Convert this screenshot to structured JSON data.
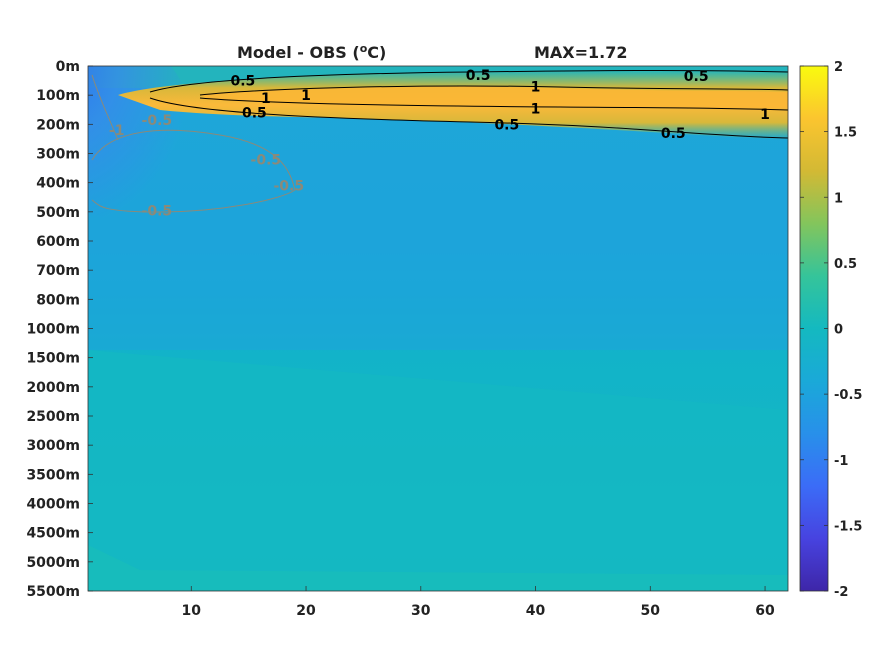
{
  "chart_data": {
    "type": "heatmap",
    "title": "Model - OBS (°C)",
    "title_main": "Model - OBS (",
    "title_sup": "o",
    "title_end": "C)",
    "annotation": "MAX=1.72",
    "xlabel": "",
    "ylabel": "",
    "xlim": [
      1,
      62
    ],
    "x_ticks": [
      10,
      20,
      30,
      40,
      50,
      60
    ],
    "y_ticks": [
      "0m",
      "100m",
      "200m",
      "300m",
      "400m",
      "500m",
      "600m",
      "700m",
      "800m",
      "1000m",
      "1500m",
      "2000m",
      "2500m",
      "3000m",
      "3500m",
      "4000m",
      "4500m",
      "5000m",
      "5500m"
    ],
    "colorbar": {
      "range": [
        -2,
        2
      ],
      "ticks": [
        "2",
        "1.5",
        "1",
        "0.5",
        "0",
        "-0.5",
        "-1",
        "-1.5",
        "-2"
      ],
      "colormap": "parula"
    },
    "contour_levels": [
      -1,
      -0.5,
      0.5,
      1
    ],
    "contour_labels": [
      {
        "text": "0.5",
        "x": 14.5,
        "depth_index": 0.5,
        "color": "#000000"
      },
      {
        "text": "1",
        "x": 16.5,
        "depth_index": 1.1,
        "color": "#000000"
      },
      {
        "text": "1",
        "x": 20,
        "depth_index": 1.0,
        "color": "#000000"
      },
      {
        "text": "0.5",
        "x": 15.5,
        "depth_index": 1.6,
        "color": "#000000"
      },
      {
        "text": "0.5",
        "x": 35,
        "depth_index": 0.3,
        "color": "#000000"
      },
      {
        "text": "1",
        "x": 40,
        "depth_index": 0.7,
        "color": "#000000"
      },
      {
        "text": "1",
        "x": 40,
        "depth_index": 1.45,
        "color": "#000000"
      },
      {
        "text": "0.5",
        "x": 37.5,
        "depth_index": 2.0,
        "color": "#000000"
      },
      {
        "text": "0.5",
        "x": 54,
        "depth_index": 0.35,
        "color": "#000000"
      },
      {
        "text": "1",
        "x": 60,
        "depth_index": 1.65,
        "color": "#000000"
      },
      {
        "text": "0.5",
        "x": 52,
        "depth_index": 2.3,
        "color": "#000000"
      },
      {
        "text": "-0.5",
        "x": 7,
        "depth_index": 1.85,
        "color": "#8a8a7a"
      },
      {
        "text": "-1",
        "x": 3.5,
        "depth_index": 2.2,
        "color": "#8a8a7a"
      },
      {
        "text": "-0.5",
        "x": 16.5,
        "depth_index": 3.2,
        "color": "#8a8a7a"
      },
      {
        "text": "-0.5",
        "x": 18.5,
        "depth_index": 4.1,
        "color": "#8a8a7a"
      },
      {
        "text": "-0.5",
        "x": 7,
        "depth_index": 4.95,
        "color": "#8a8a7a"
      }
    ]
  }
}
